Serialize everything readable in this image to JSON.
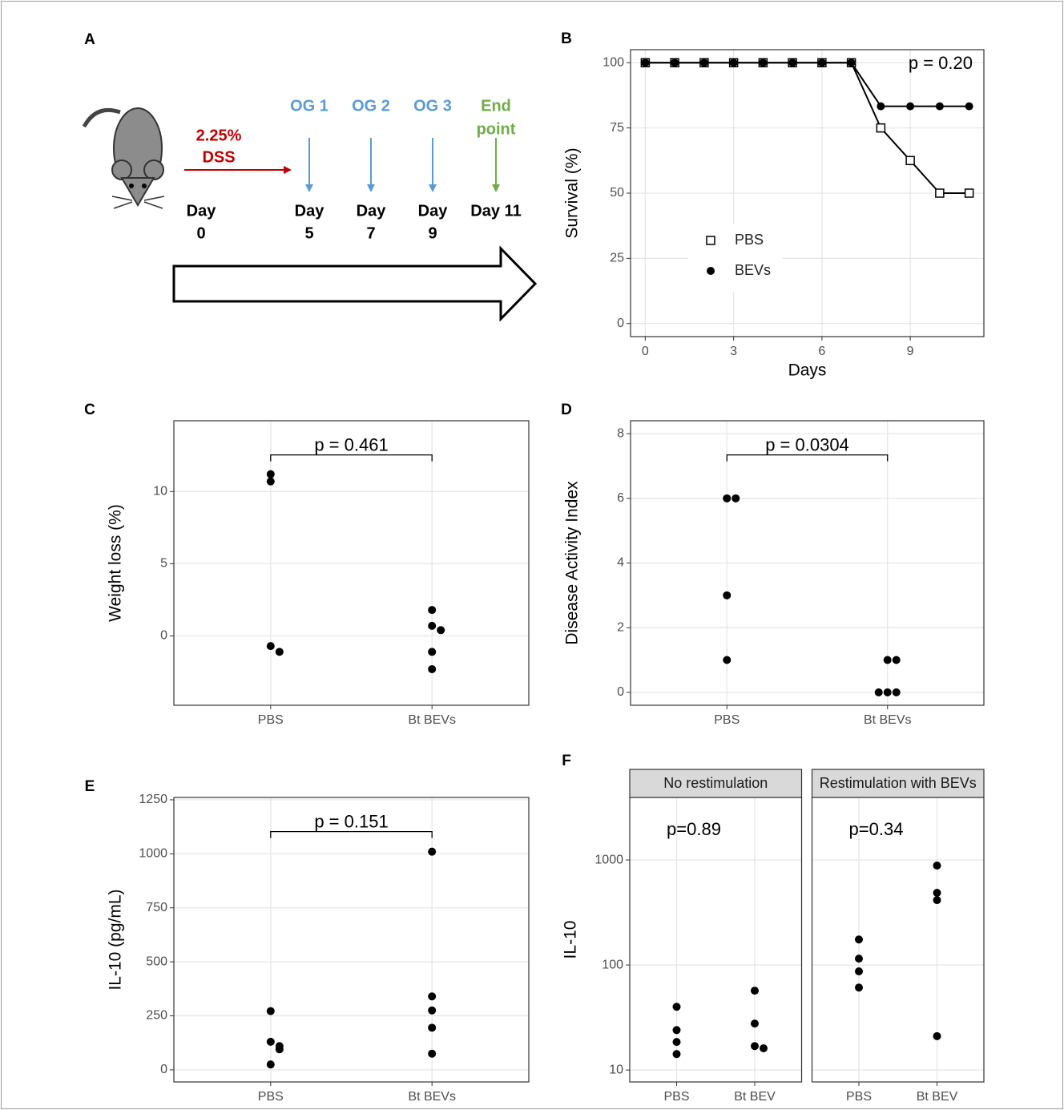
{
  "diagram": {
    "label": "A",
    "treatment": [
      "2.25%",
      "DSS"
    ],
    "start": [
      "Day",
      "0"
    ],
    "steps": [
      {
        "event": [
          "OG 1"
        ],
        "day": [
          "Day",
          "5"
        ]
      },
      {
        "event": [
          "OG 2"
        ],
        "day": [
          "Day",
          "7"
        ]
      },
      {
        "event": [
          "OG 3"
        ],
        "day": [
          "Day",
          "9"
        ]
      },
      {
        "event": [
          "End",
          "point"
        ],
        "day": [
          "Day 11"
        ]
      }
    ]
  },
  "chart_data": [
    {
      "type": "line",
      "label": "B",
      "annotation": "p = 0.20",
      "xlabel": "Days",
      "ylabel": "Survival (%)",
      "x": [
        0,
        1,
        2,
        3,
        4,
        5,
        6,
        7,
        8,
        9,
        10,
        11
      ],
      "series": [
        {
          "name": "PBS",
          "color": "#000000",
          "marker": "square-open",
          "values": [
            100,
            100,
            100,
            100,
            100,
            100,
            100,
            100,
            75,
            62.5,
            50,
            50
          ]
        },
        {
          "name": "BEVs",
          "color": "#000000",
          "marker": "circle",
          "values": [
            100,
            100,
            100,
            100,
            100,
            100,
            100,
            100,
            83.3,
            83.3,
            83.3,
            83.3
          ]
        }
      ],
      "xlim": [
        -0.5,
        11.5
      ],
      "xticks": [
        0,
        3,
        6,
        9
      ],
      "ylim": [
        -5,
        105
      ],
      "yticks": [
        0,
        25,
        50,
        75,
        100
      ],
      "grid": true,
      "legend": "bottom-left"
    },
    {
      "type": "dot",
      "label": "C",
      "annotation": "p = 0.461",
      "ylabel": "Weight loss (%)",
      "categories": [
        "PBS",
        "Bt BEVs"
      ],
      "values": [
        [
          11.2,
          10.7,
          -0.7,
          -1.1
        ],
        [
          1.8,
          0.7,
          0.4,
          -1.1,
          -2.3
        ]
      ],
      "ylim": [
        -4.8,
        14.9
      ],
      "yticks": [
        0,
        5,
        10
      ],
      "grid": true
    },
    {
      "type": "dot",
      "label": "D",
      "annotation": "p = 0.0304",
      "ylabel": "Disease Activity Index",
      "categories": [
        "PBS",
        "Bt BEVs"
      ],
      "values": [
        [
          6,
          6,
          3,
          1
        ],
        [
          1,
          1,
          0,
          0,
          0
        ]
      ],
      "ylim": [
        -0.4,
        8.4
      ],
      "yticks": [
        0,
        2,
        4,
        6,
        8
      ],
      "grid": true
    },
    {
      "type": "dot",
      "label": "E",
      "annotation": "p = 0.151",
      "ylabel": "IL-10 (pg/mL)",
      "categories": [
        "PBS",
        "Bt BEVs"
      ],
      "values": [
        [
          272,
          130,
          110,
          95,
          25
        ],
        [
          1010,
          340,
          275,
          195,
          75
        ]
      ],
      "ylim": [
        -56,
        1261
      ],
      "yticks": [
        0,
        250,
        500,
        750,
        1000,
        1250
      ],
      "grid": true
    },
    {
      "type": "facet-dot",
      "label": "F",
      "ylabel": "IL-10",
      "log_y": true,
      "ylim": [
        7.7,
        3940
      ],
      "yticks": [
        10,
        100,
        1000
      ],
      "grid": true,
      "facets": [
        {
          "title": "No restimulation",
          "annotation": "p=0.89",
          "categories": [
            "PBS",
            "Bt BEV"
          ],
          "values": [
            [
              40,
              24,
              18.5,
              14.2
            ],
            [
              57,
              27.7,
              16.9,
              16.1
            ]
          ]
        },
        {
          "title": "Restimulation with BEVs",
          "annotation": "p=0.34",
          "categories": [
            "PBS",
            "Bt BEV"
          ],
          "values": [
            [
              175,
              115,
              87,
              61
            ],
            [
              885,
              487,
              415,
              21
            ]
          ]
        }
      ]
    }
  ]
}
